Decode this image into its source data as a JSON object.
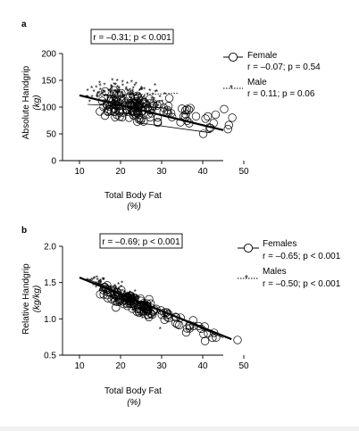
{
  "chart_data": [
    {
      "type": "scatter",
      "panel_label": "a",
      "annotation": "r = –0.31; p < 0.001",
      "xlabel": "Total Body Fat",
      "xunit": "(%)",
      "ylabel": "Absolute Handgrip",
      "yunit": "(kg)",
      "xlim": [
        10,
        50
      ],
      "ylim": [
        0,
        200
      ],
      "xticks": [
        "10",
        "20",
        "30",
        "40",
        "50"
      ],
      "yticks": [
        "0",
        "50",
        "100",
        "150",
        "200"
      ],
      "legend_position": "right",
      "series": [
        {
          "name": "Female",
          "stat": "r = –0.07; p = 0.54",
          "marker": "circle",
          "fit": [
            [
              12,
              105
            ],
            [
              32,
              98
            ]
          ]
        },
        {
          "name": "Male",
          "stat": "r = 0.11; p = 0.06",
          "marker": "asterisk",
          "fit": [
            [
              14,
              120
            ],
            [
              34,
              126
            ]
          ]
        }
      ],
      "overall_fit": [
        [
          10,
          122
        ],
        [
          45,
          57
        ]
      ],
      "aux_fit": [
        [
          25,
          70
        ],
        [
          42,
          52
        ]
      ]
    },
    {
      "type": "scatter",
      "panel_label": "b",
      "annotation": "r = –0.69; p < 0.001",
      "xlabel": "Total Body Fat",
      "xunit": "(%)",
      "ylabel": "Relative Handgrip",
      "yunit": "(kg/kg)",
      "xlim": [
        10,
        50
      ],
      "ylim": [
        0.5,
        2.0
      ],
      "xticks": [
        "10",
        "20",
        "30",
        "40",
        "50"
      ],
      "yticks": [
        "0.5",
        "1.0",
        "1.5",
        "2.0"
      ],
      "legend_position": "right",
      "series": [
        {
          "name": "Females",
          "stat": "r = –0.65; p < 0.001",
          "marker": "circle"
        },
        {
          "name": "Males",
          "stat": "r = –0.50; p < 0.001",
          "marker": "asterisk"
        }
      ],
      "overall_fit": [
        [
          10,
          1.57
        ],
        [
          47,
          0.72
        ]
      ],
      "aux_fit": [
        [
          12,
          1.55
        ],
        [
          45,
          0.74
        ]
      ]
    }
  ]
}
